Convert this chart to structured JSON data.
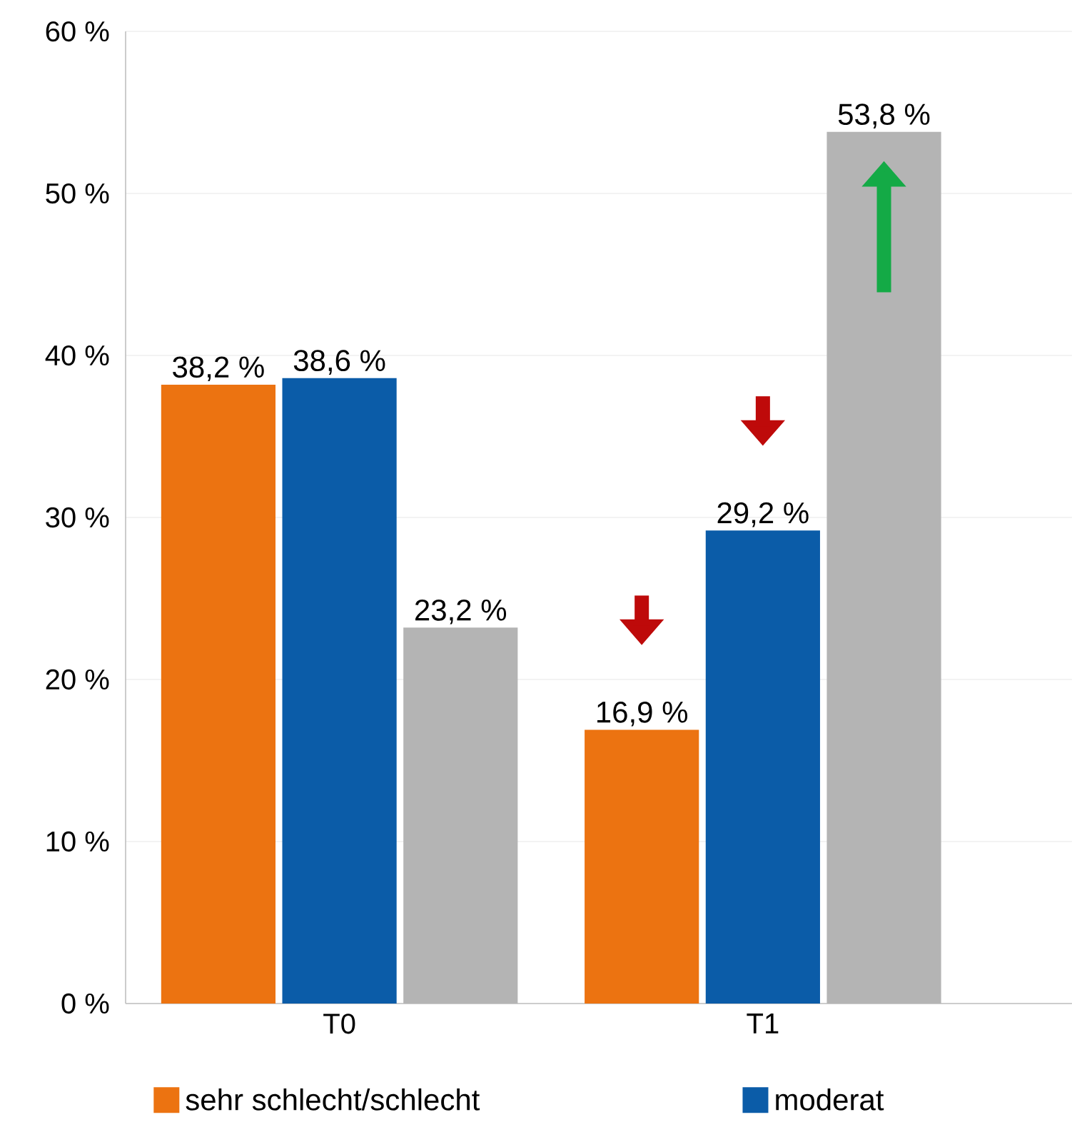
{
  "chart_data": {
    "type": "bar",
    "categories": [
      "T0",
      "T1"
    ],
    "series": [
      {
        "name": "sehr schlecht/schlecht",
        "color": "#ec7311",
        "values": [
          38.2,
          16.9
        ],
        "value_labels": [
          "38,2 %",
          "16,9 %"
        ]
      },
      {
        "name": "moderat",
        "color": "#0b5ca8",
        "values": [
          38.6,
          29.2
        ],
        "value_labels": [
          "38,6 %",
          "29,2 %"
        ]
      },
      {
        "color": "#b4b4b4",
        "values": [
          23.2,
          53.8
        ],
        "value_labels": [
          "23,2 %",
          "53,8 %"
        ]
      }
    ],
    "ylim": [
      0,
      60
    ],
    "yticks": [
      {
        "value": 0,
        "label": "0 %"
      },
      {
        "value": 10,
        "label": "10 %"
      },
      {
        "value": 20,
        "label": "20 %"
      },
      {
        "value": 30,
        "label": "30 %"
      },
      {
        "value": 40,
        "label": "40 %"
      },
      {
        "value": 50,
        "label": "50 %"
      },
      {
        "value": 60,
        "label": "60 %"
      }
    ],
    "grid": "y",
    "legend": "bottom"
  }
}
